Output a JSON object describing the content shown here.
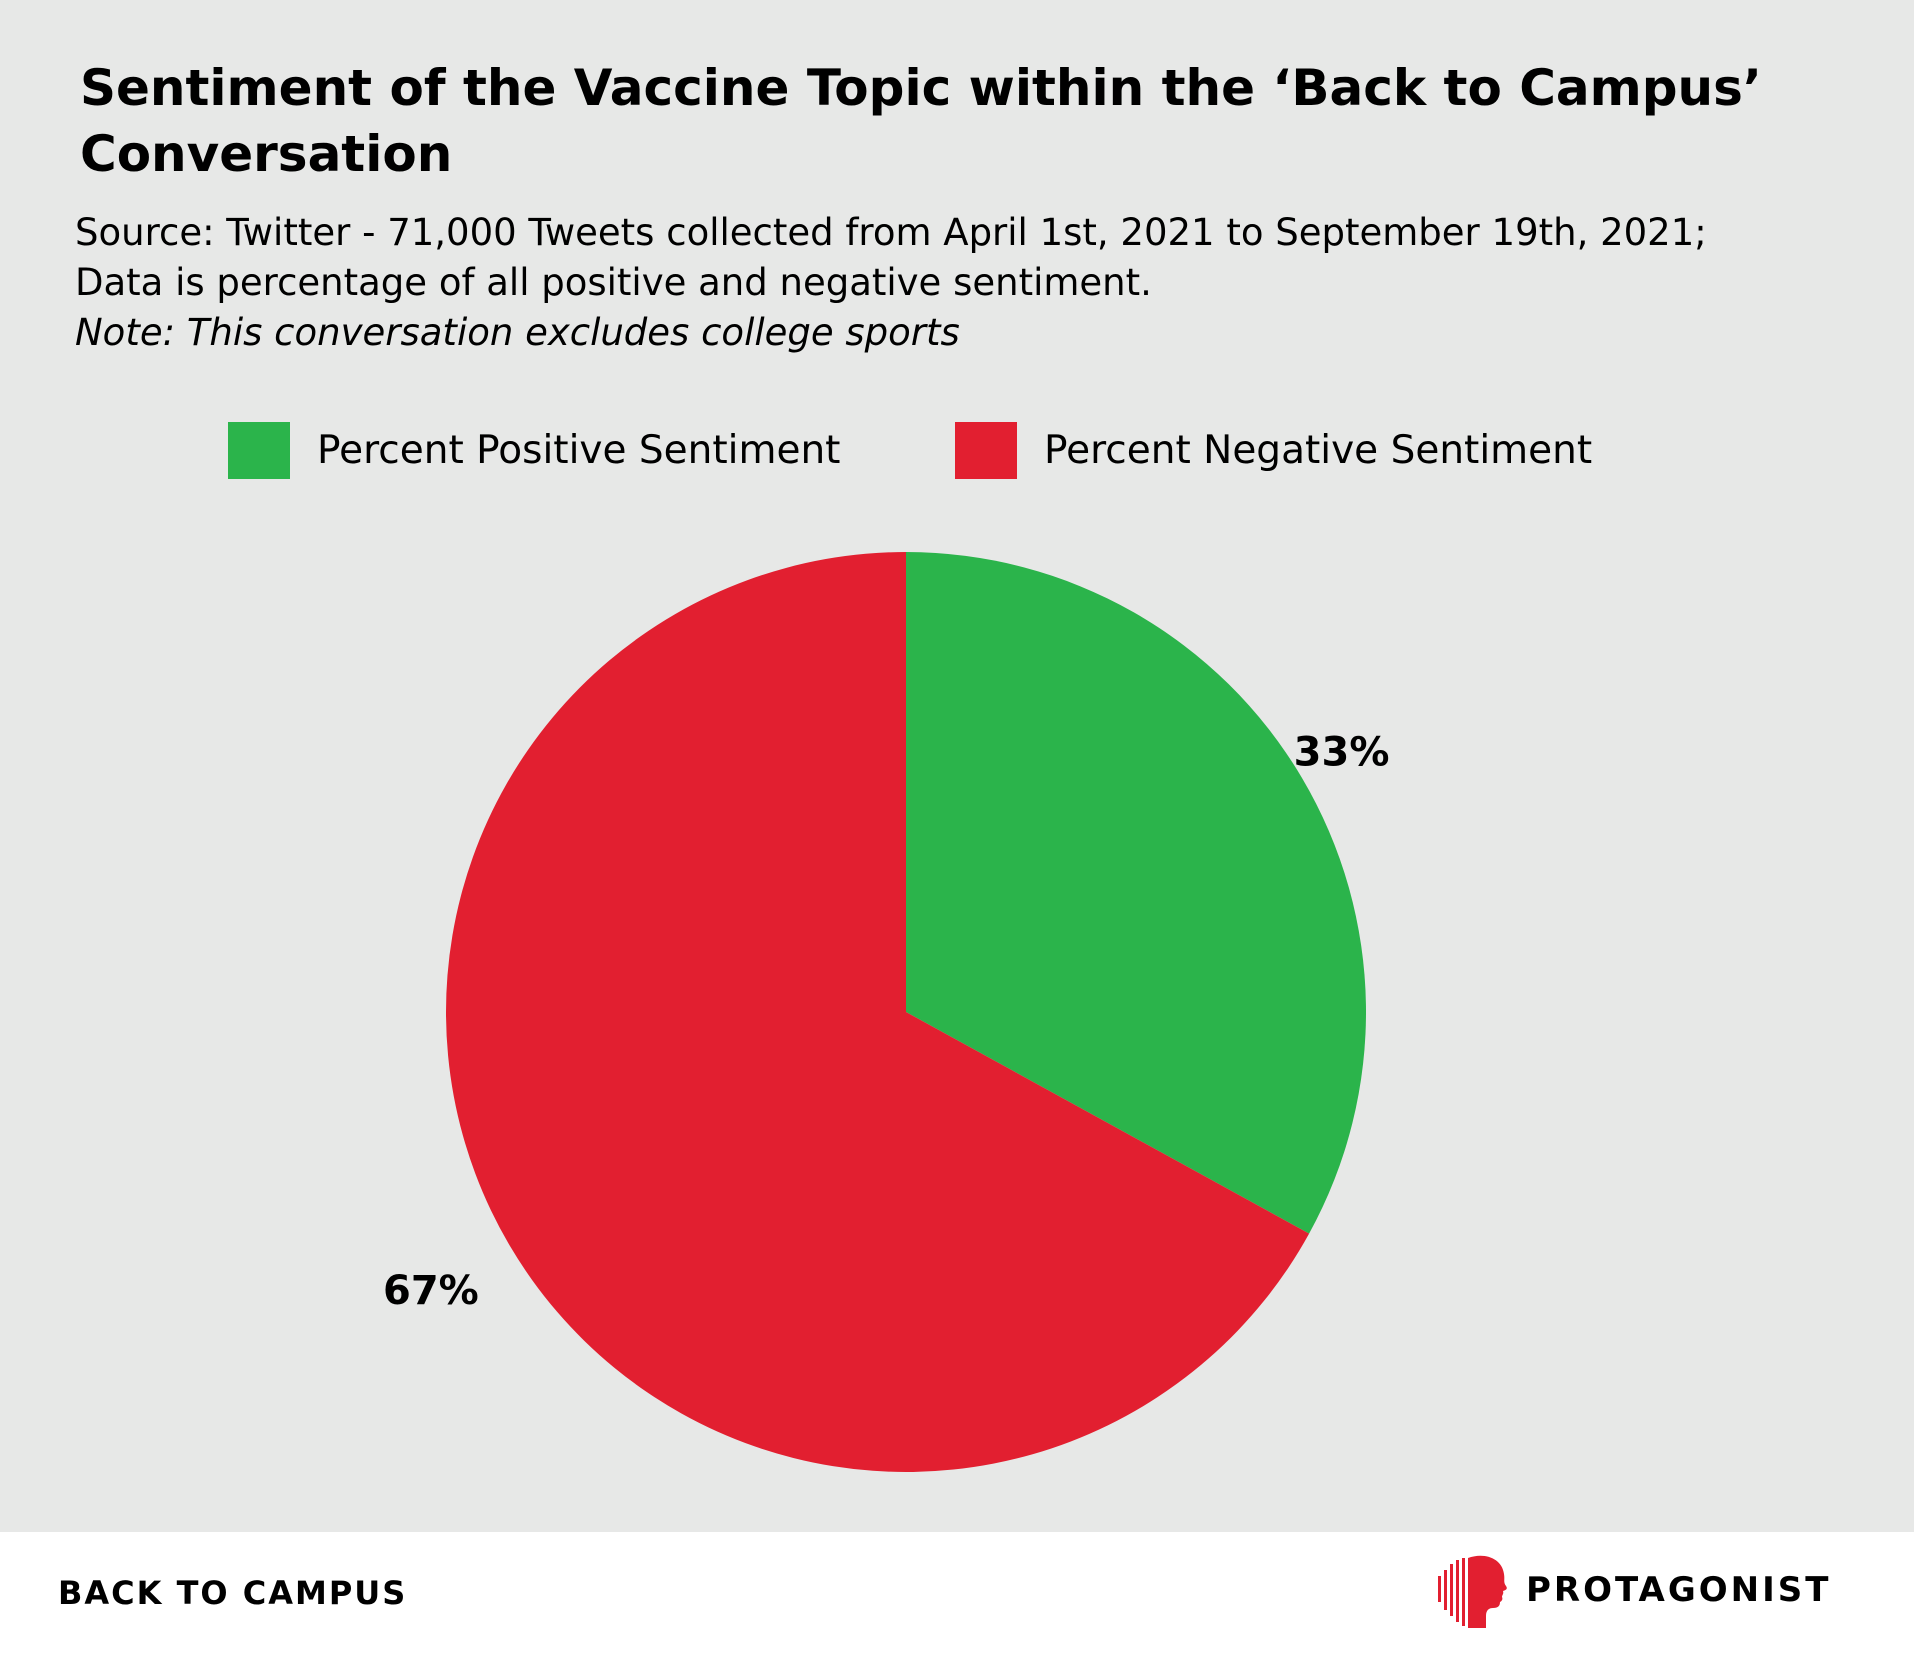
{
  "title": "Sentiment of the Vaccine Topic within the ‘Back to Campus’ Conversation",
  "subtitle": {
    "line1": "Source: Twitter - 71,000 Tweets collected from April 1st, 2021 to September 19th, 2021;",
    "line2": "Data is percentage of all positive and negative sentiment.",
    "note": "Note: This conversation excludes college sports"
  },
  "colors": {
    "background": "#e7e8e7",
    "positive": "#2bb44b",
    "negative": "#e21f30",
    "brand_red": "#e21f30"
  },
  "chart_data": {
    "type": "pie",
    "title": "Sentiment of the Vaccine Topic within the ‘Back to Campus’ Conversation",
    "legend_position": "top",
    "labels": [
      "Percent Positive Sentiment",
      "Percent Negative Sentiment"
    ],
    "values": [
      33,
      67
    ],
    "value_labels": [
      "33%",
      "67%"
    ],
    "colors": [
      "#2bb44b",
      "#e21f30"
    ],
    "start_angle": "12 o'clock",
    "direction": "clockwise"
  },
  "footer": {
    "left_text": "BACK TO CAMPUS",
    "brand_name": "PROTAGONIST",
    "brand_icon": "protagonist-logo-icon"
  }
}
